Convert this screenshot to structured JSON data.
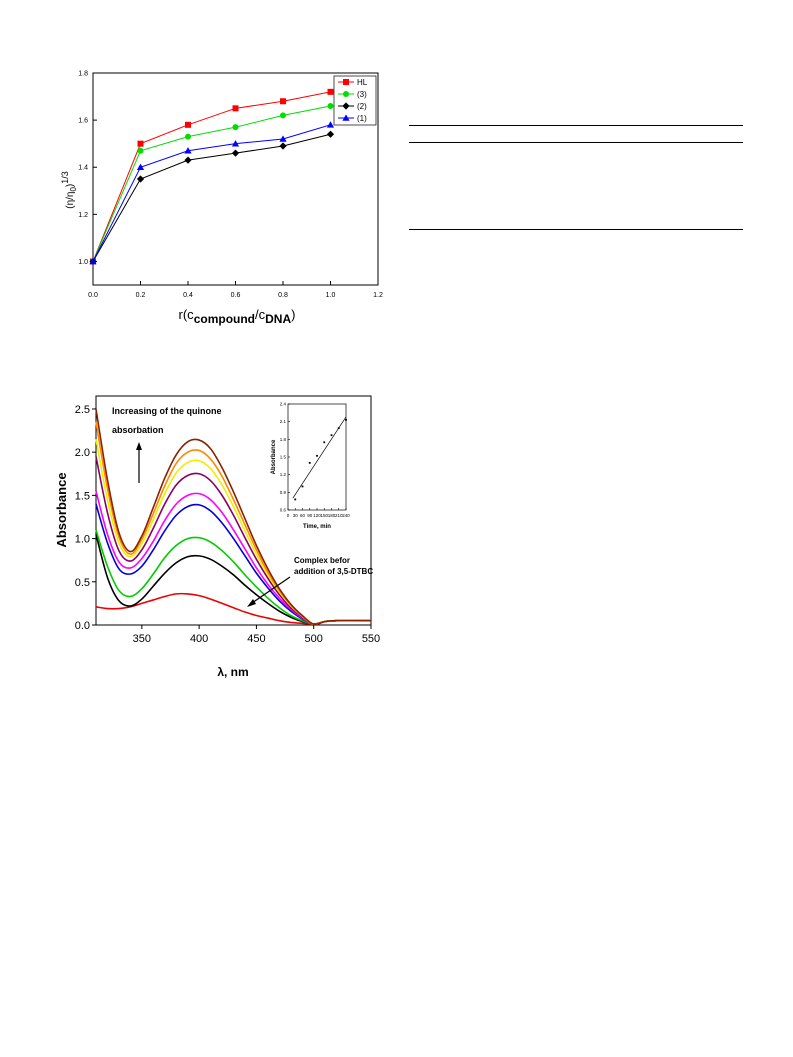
{
  "chart_data": [
    {
      "type": "line",
      "title": "",
      "xlabel": "r(c",
      "xlabel_sub1": "compound",
      "xlabel_mid": "/c",
      "xlabel_sub2": "DNA",
      "xlabel_end": ")",
      "ylabel": "(η/η",
      "ylabel_sub": "0",
      "ylabel_end": ")",
      "ylabel_sup": "1/3",
      "xlim": [
        0.0,
        1.2
      ],
      "ylim": [
        0.9,
        1.8
      ],
      "x_ticks": [
        0.0,
        0.2,
        0.4,
        0.6,
        0.8,
        1.0,
        1.2
      ],
      "x_tick_labels": [
        "0.0",
        "0.2",
        "0.4",
        "0.6",
        "0.8",
        "1.0",
        "1.2"
      ],
      "y_ticks": [
        1.0,
        1.2,
        1.4,
        1.6,
        1.8
      ],
      "y_tick_labels": [
        "1.0",
        "1.2",
        "1.4",
        "1.6",
        "1.8"
      ],
      "legend_placement": "top-right",
      "x": [
        0.0,
        0.2,
        0.4,
        0.6,
        0.8,
        1.0
      ],
      "series": [
        {
          "name": "HL",
          "color": "#ff0000",
          "marker": "square",
          "values": [
            1.0,
            1.5,
            1.58,
            1.65,
            1.68,
            1.72
          ]
        },
        {
          "name": "(3)",
          "color": "#00dd00",
          "marker": "circle",
          "values": [
            1.0,
            1.47,
            1.53,
            1.57,
            1.62,
            1.66
          ]
        },
        {
          "name": "(2)",
          "color": "#000000",
          "marker": "diamond",
          "values": [
            1.0,
            1.35,
            1.43,
            1.46,
            1.49,
            1.54
          ]
        },
        {
          "name": "(1)",
          "color": "#0000ff",
          "marker": "triangle",
          "values": [
            1.0,
            1.4,
            1.47,
            1.5,
            1.52,
            1.58
          ]
        }
      ]
    },
    {
      "type": "line",
      "title": "",
      "xlabel": "λ, nm",
      "ylabel": "Absorbance",
      "xlim": [
        310,
        550
      ],
      "ylim": [
        0.0,
        2.65
      ],
      "x_ticks": [
        350,
        400,
        450,
        500,
        550
      ],
      "x_tick_labels": [
        "350",
        "400",
        "450",
        "500",
        "550"
      ],
      "y_ticks": [
        0.0,
        0.5,
        1.0,
        1.5,
        2.0,
        2.5
      ],
      "y_tick_labels": [
        "0.0",
        "0.5",
        "1.0",
        "1.5",
        "2.0",
        "2.5"
      ],
      "annotation_top_line1": "Increasing of the quinone",
      "annotation_top_line2": "absorbation",
      "annotation_bottom_line1": "Complex befor",
      "annotation_bottom_line2": "addition of 3,5-DTBC",
      "x": [
        310,
        320,
        330,
        340,
        350,
        360,
        370,
        380,
        390,
        400,
        410,
        420,
        430,
        440,
        450,
        460,
        470,
        480,
        490,
        500,
        510,
        520,
        550
      ],
      "series": [
        {
          "color": "#ee0000",
          "values": [
            0.21,
            0.19,
            0.19,
            0.21,
            0.25,
            0.29,
            0.33,
            0.36,
            0.36,
            0.34,
            0.3,
            0.25,
            0.2,
            0.15,
            0.11,
            0.08,
            0.05,
            0.03,
            0.02,
            0.01,
            0.04,
            0.05,
            0.05
          ]
        },
        {
          "color": "#000000",
          "values": [
            1.05,
            0.55,
            0.28,
            0.22,
            0.3,
            0.45,
            0.6,
            0.72,
            0.79,
            0.8,
            0.76,
            0.68,
            0.58,
            0.46,
            0.35,
            0.25,
            0.16,
            0.09,
            0.04,
            0.01,
            0.04,
            0.05,
            0.05
          ]
        },
        {
          "color": "#00cc00",
          "values": [
            1.1,
            0.68,
            0.4,
            0.33,
            0.42,
            0.59,
            0.78,
            0.92,
            1.0,
            1.01,
            0.96,
            0.86,
            0.73,
            0.58,
            0.44,
            0.31,
            0.2,
            0.11,
            0.05,
            0.01,
            0.04,
            0.05,
            0.05
          ]
        },
        {
          "color": "#0000dd",
          "values": [
            1.4,
            0.95,
            0.65,
            0.59,
            0.68,
            0.87,
            1.09,
            1.27,
            1.37,
            1.39,
            1.32,
            1.18,
            1.0,
            0.8,
            0.6,
            0.43,
            0.28,
            0.16,
            0.07,
            0.01,
            0.04,
            0.05,
            0.05
          ]
        },
        {
          "color": "#ff00ff",
          "values": [
            1.55,
            1.05,
            0.73,
            0.66,
            0.77,
            0.97,
            1.21,
            1.4,
            1.5,
            1.52,
            1.45,
            1.3,
            1.1,
            0.88,
            0.66,
            0.47,
            0.31,
            0.18,
            0.08,
            0.01,
            0.04,
            0.05,
            0.05
          ]
        },
        {
          "color": "#880066",
          "values": [
            1.95,
            1.3,
            0.86,
            0.74,
            0.87,
            1.12,
            1.4,
            1.62,
            1.73,
            1.75,
            1.67,
            1.5,
            1.27,
            1.01,
            0.76,
            0.54,
            0.35,
            0.2,
            0.09,
            0.01,
            0.04,
            0.05,
            0.05
          ]
        },
        {
          "color": "#eeee00",
          "values": [
            2.15,
            1.45,
            0.95,
            0.79,
            0.94,
            1.22,
            1.52,
            1.76,
            1.88,
            1.9,
            1.81,
            1.62,
            1.37,
            1.09,
            0.82,
            0.58,
            0.38,
            0.22,
            0.1,
            0.01,
            0.04,
            0.05,
            0.05
          ]
        },
        {
          "color": "#ff8800",
          "values": [
            2.35,
            1.58,
            1.02,
            0.82,
            0.99,
            1.29,
            1.61,
            1.87,
            2.0,
            2.02,
            1.92,
            1.72,
            1.45,
            1.16,
            0.87,
            0.61,
            0.4,
            0.23,
            0.1,
            0.01,
            0.04,
            0.05,
            0.05
          ]
        },
        {
          "color": "#882200",
          "values": [
            2.5,
            1.68,
            1.07,
            0.85,
            1.03,
            1.36,
            1.7,
            1.97,
            2.12,
            2.14,
            2.04,
            1.82,
            1.54,
            1.23,
            0.92,
            0.65,
            0.42,
            0.24,
            0.11,
            0.01,
            0.04,
            0.05,
            0.05
          ]
        }
      ],
      "inset": {
        "type": "scatter",
        "xlabel": "Time, min",
        "ylabel": "Absorbance",
        "xlim": [
          0,
          240
        ],
        "ylim": [
          0.6,
          2.4
        ],
        "x_ticks": [
          0,
          30,
          60,
          90,
          120,
          150,
          180,
          210,
          240
        ],
        "x_tick_labels": [
          "0",
          "30",
          "60",
          "90",
          "120",
          "150",
          "180",
          "210",
          "240"
        ],
        "y_ticks": [
          0.6,
          0.9,
          1.2,
          1.5,
          1.8,
          2.1,
          2.4
        ],
        "y_tick_labels": [
          "0.6",
          "0.9",
          "1.2",
          "1.5",
          "1.8",
          "2.1",
          "2.4"
        ],
        "points": {
          "x": [
            30,
            60,
            90,
            120,
            150,
            180,
            210,
            240
          ],
          "y": [
            0.78,
            1.0,
            1.4,
            1.52,
            1.75,
            1.87,
            1.99,
            2.13
          ]
        },
        "fit": {
          "x": [
            20,
            240
          ],
          "y": [
            0.8,
            2.18
          ]
        }
      }
    }
  ]
}
